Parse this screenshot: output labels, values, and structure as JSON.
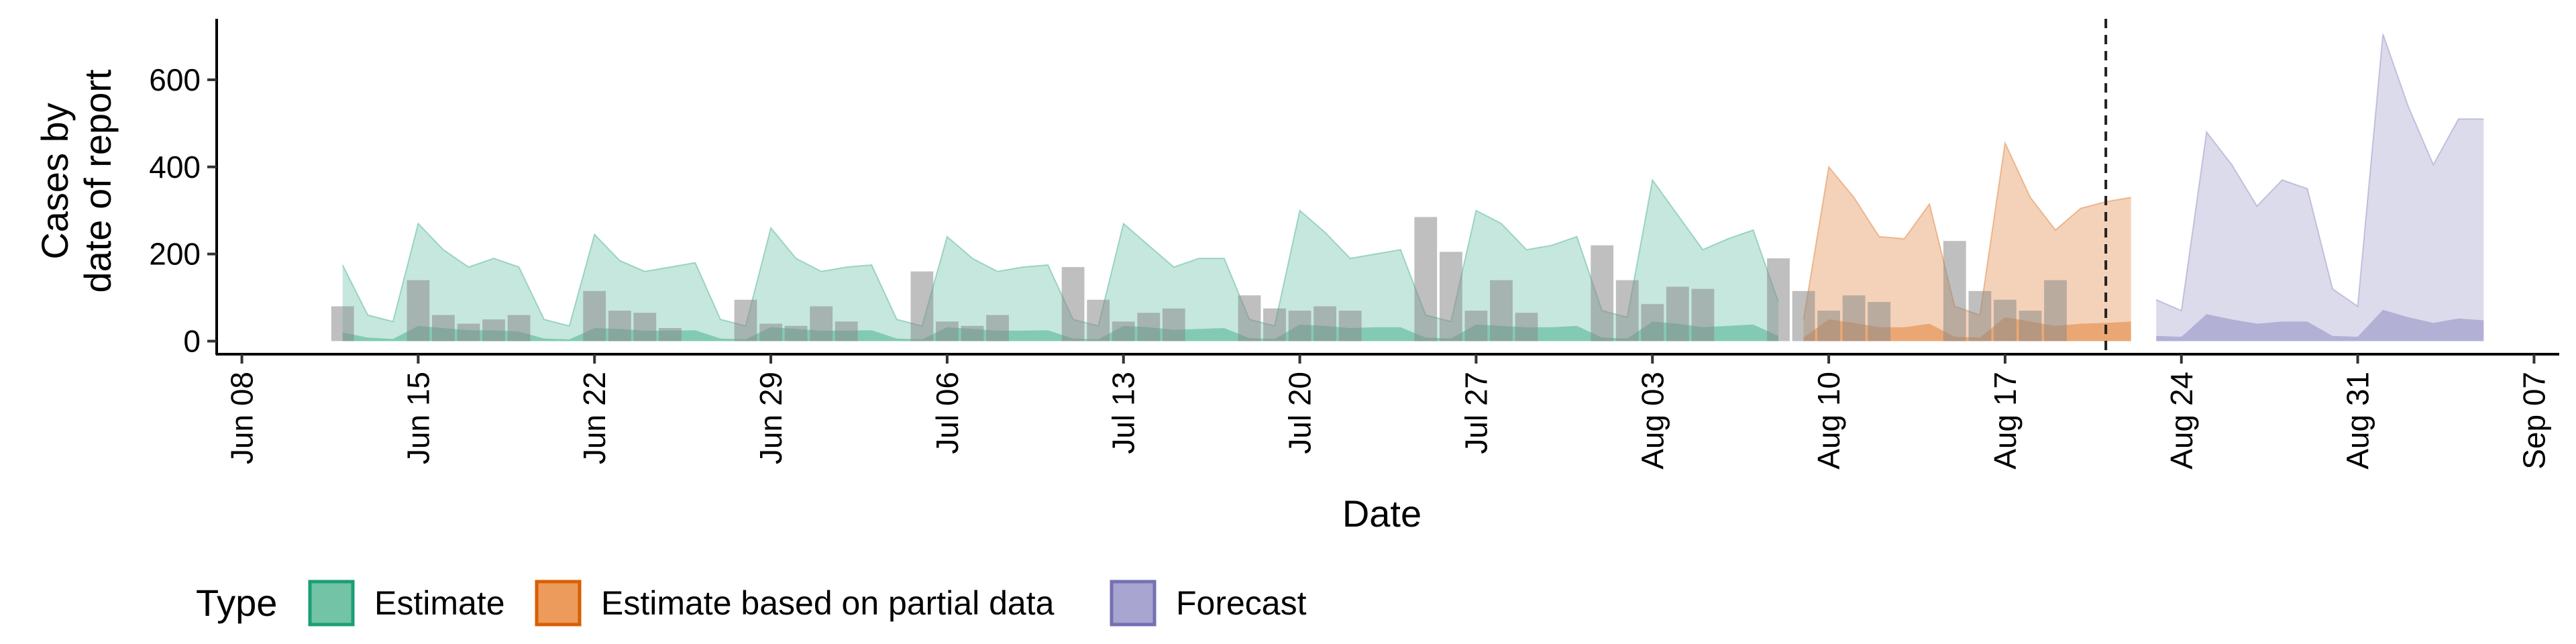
{
  "chart_data": {
    "type": "area",
    "title": "",
    "xlabel": "Date",
    "ylabel_lines": [
      "Cases by",
      "date of report"
    ],
    "x_ticks": [
      "Jun 08",
      "Jun 15",
      "Jun 22",
      "Jun 29",
      "Jul 06",
      "Jul 13",
      "Jul 20",
      "Jul 27",
      "Aug 03",
      "Aug 10",
      "Aug 17",
      "Aug 24",
      "Aug 31",
      "Sep 07"
    ],
    "x_tick_dates": [
      "2020-06-08",
      "2020-06-15",
      "2020-06-22",
      "2020-06-29",
      "2020-07-06",
      "2020-07-13",
      "2020-07-20",
      "2020-07-27",
      "2020-08-03",
      "2020-08-10",
      "2020-08-17",
      "2020-08-24",
      "2020-08-31",
      "2020-09-07"
    ],
    "xlim": [
      "2020-06-07",
      "2020-09-08"
    ],
    "y_ticks": [
      0,
      200,
      400,
      600
    ],
    "ylim": [
      -30,
      740
    ],
    "grid": false,
    "legend": {
      "title": "Type",
      "placement": "bottom",
      "entries": [
        {
          "name": "Estimate",
          "fill": "#73c3a6",
          "stroke": "#1b9e77"
        },
        {
          "name": "Estimate based on partial data",
          "fill": "#ec9b5c",
          "stroke": "#d95f02"
        },
        {
          "name": "Forecast",
          "fill": "#a8a6d0",
          "stroke": "#7570b3"
        }
      ]
    },
    "series_colors": {
      "estimate": "#1b9e77",
      "partial": "#d95f02",
      "forecast": "#7570b3"
    },
    "vline_date": "2020-08-21",
    "bar_color": "#8a8a8a",
    "start_date": "2020-06-12",
    "bars": [
      80,
      null,
      null,
      140,
      60,
      40,
      50,
      60,
      null,
      null,
      115,
      70,
      65,
      30,
      null,
      null,
      95,
      40,
      35,
      80,
      45,
      null,
      null,
      160,
      45,
      35,
      60,
      null,
      null,
      170,
      95,
      45,
      65,
      75,
      null,
      null,
      105,
      75,
      70,
      80,
      70,
      null,
      null,
      285,
      205,
      70,
      140,
      65,
      null,
      null,
      220,
      140,
      85,
      125,
      120,
      null,
      null,
      190,
      115,
      70,
      105,
      90,
      null,
      null,
      230,
      115,
      95,
      70,
      140
    ],
    "estimate_upper": [
      175,
      60,
      45,
      270,
      210,
      170,
      190,
      170,
      50,
      35,
      245,
      185,
      160,
      170,
      180,
      50,
      35,
      260,
      190,
      160,
      170,
      175,
      50,
      35,
      240,
      190,
      160,
      170,
      175,
      50,
      35,
      270,
      220,
      170,
      190,
      190,
      50,
      35,
      300,
      250,
      190,
      200,
      210,
      60,
      45,
      300,
      270,
      210,
      220,
      240,
      70,
      55,
      370,
      290,
      210,
      235,
      255,
      90
    ],
    "estimate_lower": [
      20,
      8,
      5,
      35,
      30,
      25,
      25,
      22,
      6,
      4,
      30,
      28,
      24,
      24,
      25,
      6,
      4,
      32,
      28,
      24,
      24,
      25,
      6,
      4,
      32,
      28,
      24,
      24,
      25,
      6,
      4,
      35,
      32,
      26,
      28,
      30,
      7,
      5,
      38,
      35,
      30,
      32,
      32,
      8,
      6,
      38,
      35,
      32,
      32,
      35,
      8,
      6,
      45,
      40,
      32,
      35,
      38,
      12
    ],
    "partial_upper": [
      50,
      400,
      330,
      240,
      235,
      315,
      80,
      60,
      455,
      330,
      255,
      305,
      320,
      330
    ],
    "partial_lower": [
      8,
      50,
      42,
      32,
      32,
      40,
      10,
      8,
      55,
      45,
      35,
      40,
      42,
      45
    ],
    "forecast_upper": [
      95,
      70,
      480,
      405,
      310,
      370,
      350,
      120,
      80,
      705,
      540,
      405,
      510,
      510
    ],
    "forecast_lower": [
      12,
      10,
      62,
      50,
      40,
      45,
      45,
      12,
      10,
      72,
      55,
      42,
      52,
      48
    ]
  }
}
